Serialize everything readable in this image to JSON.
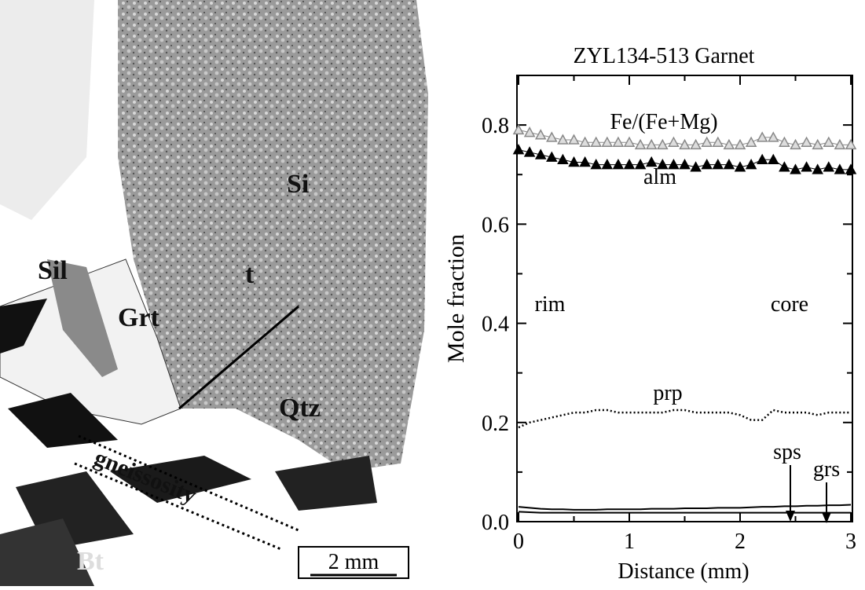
{
  "micrograph": {
    "labels": [
      "Si",
      "t",
      "Sil",
      "Grt",
      "Qtz",
      "gneissosity",
      "Bt"
    ],
    "scale_bar": "2 mm"
  },
  "chart_data": {
    "type": "line",
    "title": "ZYL134-513  Garnet",
    "x_label": "Distance (mm)",
    "y_label": "Mole fraction",
    "x": [
      0,
      0.1,
      0.2,
      0.3,
      0.4,
      0.5,
      0.6,
      0.7,
      0.8,
      0.9,
      1,
      1.1,
      1.2,
      1.3,
      1.4,
      1.5,
      1.6,
      1.7,
      1.8,
      1.9,
      2,
      2.1,
      2.2,
      2.3,
      2.4,
      2.5,
      2.6,
      2.7,
      2.8,
      2.9,
      3
    ],
    "series": [
      {
        "name": "Fe/(Fe+Mg)",
        "color": "#888888",
        "style": "triangle-open",
        "values": [
          0.79,
          0.785,
          0.78,
          0.775,
          0.77,
          0.77,
          0.765,
          0.765,
          0.765,
          0.765,
          0.765,
          0.76,
          0.76,
          0.76,
          0.765,
          0.76,
          0.76,
          0.765,
          0.765,
          0.76,
          0.76,
          0.765,
          0.775,
          0.775,
          0.765,
          0.76,
          0.765,
          0.76,
          0.765,
          0.76,
          0.76
        ]
      },
      {
        "name": "alm",
        "color": "#000000",
        "style": "triangle-filled",
        "values": [
          0.75,
          0.745,
          0.74,
          0.735,
          0.73,
          0.725,
          0.725,
          0.72,
          0.72,
          0.72,
          0.72,
          0.72,
          0.725,
          0.72,
          0.72,
          0.72,
          0.715,
          0.72,
          0.72,
          0.72,
          0.715,
          0.72,
          0.73,
          0.73,
          0.715,
          0.71,
          0.715,
          0.71,
          0.715,
          0.71,
          0.71
        ]
      },
      {
        "name": "prp",
        "color": "#000000",
        "style": "dotted",
        "values": [
          0.19,
          0.2,
          0.205,
          0.21,
          0.215,
          0.22,
          0.22,
          0.225,
          0.225,
          0.22,
          0.22,
          0.22,
          0.22,
          0.22,
          0.225,
          0.225,
          0.22,
          0.22,
          0.22,
          0.22,
          0.215,
          0.205,
          0.205,
          0.225,
          0.22,
          0.22,
          0.22,
          0.215,
          0.22,
          0.22,
          0.22
        ]
      },
      {
        "name": "sps",
        "color": "#000000",
        "style": "solid",
        "values": [
          0.03,
          0.028,
          0.026,
          0.025,
          0.025,
          0.024,
          0.024,
          0.024,
          0.025,
          0.025,
          0.025,
          0.025,
          0.026,
          0.026,
          0.026,
          0.027,
          0.027,
          0.027,
          0.028,
          0.028,
          0.028,
          0.029,
          0.03,
          0.03,
          0.031,
          0.031,
          0.032,
          0.032,
          0.033,
          0.033,
          0.034
        ]
      },
      {
        "name": "grs",
        "color": "#000000",
        "style": "solid",
        "values": [
          0.02,
          0.019,
          0.018,
          0.018,
          0.018,
          0.018,
          0.018,
          0.018,
          0.018,
          0.018,
          0.018,
          0.018,
          0.018,
          0.018,
          0.018,
          0.018,
          0.018,
          0.018,
          0.018,
          0.018,
          0.018,
          0.018,
          0.018,
          0.018,
          0.018,
          0.018,
          0.018,
          0.018,
          0.018,
          0.018,
          0.018
        ]
      }
    ],
    "annotations": [
      "rim",
      "core"
    ],
    "xlim": [
      0,
      3
    ],
    "xticks": [
      0,
      1,
      2,
      3
    ],
    "xminorticks": [
      0.5,
      1.5,
      2.5
    ],
    "ylim": [
      0,
      0.9
    ],
    "yticks": [
      {
        "value": 0,
        "label": "0.0"
      },
      0.2,
      0.4,
      0.6,
      0.8
    ],
    "yminorticks": [
      0.1,
      0.3,
      0.5,
      0.7
    ]
  }
}
